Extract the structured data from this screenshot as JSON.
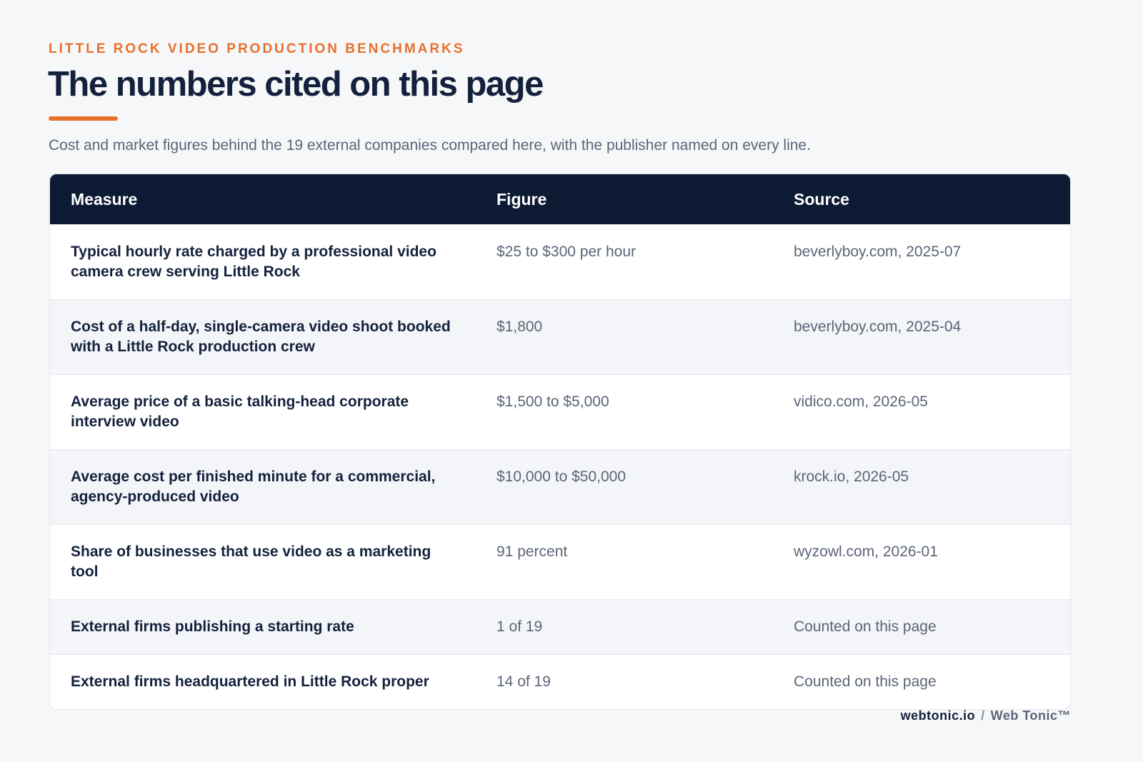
{
  "header": {
    "eyebrow": "LITTLE ROCK VIDEO PRODUCTION BENCHMARKS",
    "title": "The numbers cited on this page",
    "subtitle": "Cost and market figures behind the 19 external companies compared here, with the publisher named on every line."
  },
  "table": {
    "columns": [
      "Measure",
      "Figure",
      "Source"
    ],
    "rows": [
      [
        "Typical hourly rate charged by a professional video camera crew serving Little Rock",
        "$25 to $300 per hour",
        "beverlyboy.com, 2025-07"
      ],
      [
        "Cost of a half-day, single-camera video shoot booked with a Little Rock production crew",
        "$1,800",
        "beverlyboy.com, 2025-04"
      ],
      [
        "Average price of a basic talking-head corporate interview video",
        "$1,500 to $5,000",
        "vidico.com, 2026-05"
      ],
      [
        "Average cost per finished minute for a commercial, agency-produced video",
        "$10,000 to $50,000",
        "krock.io, 2026-05"
      ],
      [
        "Share of businesses that use video as a marketing tool",
        "91 percent",
        "wyzowl.com, 2026-01"
      ],
      [
        "External firms publishing a starting rate",
        "1 of 19",
        "Counted on this page"
      ],
      [
        "External firms headquartered in Little Rock proper",
        "14 of 19",
        "Counted on this page"
      ]
    ]
  },
  "footer": {
    "site": "webtonic.io",
    "separator": "/",
    "brand": "Web Tonic™"
  }
}
